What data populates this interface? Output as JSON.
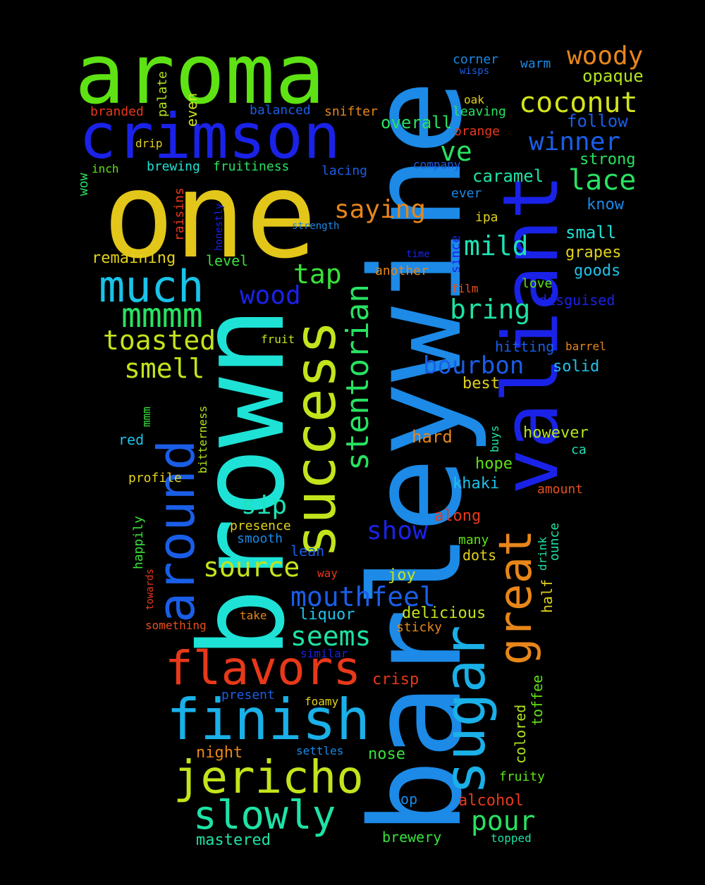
{
  "words": [
    {
      "text": "barleywine",
      "color": "#1c8ae6"
    },
    {
      "text": "brown",
      "color": "#1ee2d6"
    },
    {
      "text": "one",
      "color": "#e2c61a"
    },
    {
      "text": "aroma",
      "color": "#5ee214"
    },
    {
      "text": "valiant",
      "color": "#1a22e8"
    },
    {
      "text": "crimson",
      "color": "#1a22e8"
    },
    {
      "text": "success",
      "color": "#c2e41c"
    },
    {
      "text": "sugar",
      "color": "#1ab0e8"
    },
    {
      "text": "great",
      "color": "#e8861a"
    },
    {
      "text": "around",
      "color": "#1a5ee8"
    },
    {
      "text": "finish",
      "color": "#1ab0e8"
    },
    {
      "text": "flavors",
      "color": "#e8381a"
    },
    {
      "text": "jericho",
      "color": "#c2e41c"
    },
    {
      "text": "slowly",
      "color": "#1ee2a6"
    },
    {
      "text": "much",
      "color": "#1ac2e8"
    },
    {
      "text": "stentorian",
      "color": "#28e262"
    },
    {
      "text": "mmmm",
      "color": "#28e262"
    },
    {
      "text": "toasted",
      "color": "#c2e41c"
    },
    {
      "text": "coconut",
      "color": "#d2e41c"
    },
    {
      "text": "woody",
      "color": "#e8861a"
    },
    {
      "text": "saying",
      "color": "#e8861a"
    },
    {
      "text": "winner",
      "color": "#1a5ee8"
    },
    {
      "text": "lace",
      "color": "#28e262"
    },
    {
      "text": "mild",
      "color": "#1ee2b6"
    },
    {
      "text": "bring",
      "color": "#1ee2a6"
    },
    {
      "text": "tap",
      "color": "#38e23a"
    },
    {
      "text": "wood",
      "color": "#1a22e8"
    },
    {
      "text": "smell",
      "color": "#c2e41c"
    },
    {
      "text": "bourbon",
      "color": "#1a5ee8"
    },
    {
      "text": "sip",
      "color": "#1ee2b6"
    },
    {
      "text": "source",
      "color": "#c2e41c"
    },
    {
      "text": "show",
      "color": "#1a22e8"
    },
    {
      "text": "mouthfeel",
      "color": "#1a5ee8"
    },
    {
      "text": "seems",
      "color": "#1ee2a6"
    },
    {
      "text": "pour",
      "color": "#28e262"
    },
    {
      "text": "ve",
      "color": "#28e262"
    },
    {
      "text": "caramel",
      "color": "#1ee2a6"
    },
    {
      "text": "overall",
      "color": "#28e262"
    },
    {
      "text": "opaque",
      "color": "#b2e41c"
    },
    {
      "text": "follow",
      "color": "#1a5ee8"
    },
    {
      "text": "strong",
      "color": "#28e262"
    },
    {
      "text": "know",
      "color": "#1a8ae8"
    },
    {
      "text": "small",
      "color": "#1ee2d6"
    },
    {
      "text": "grapes",
      "color": "#e2d21a"
    },
    {
      "text": "goods",
      "color": "#1ec2e8"
    },
    {
      "text": "love",
      "color": "#5ee214"
    },
    {
      "text": "disguised",
      "color": "#1a22e8"
    },
    {
      "text": "hitting",
      "color": "#1a5ee8"
    },
    {
      "text": "barrel",
      "color": "#e8861a"
    },
    {
      "text": "solid",
      "color": "#1ec2e8"
    },
    {
      "text": "best",
      "color": "#e2d21a"
    },
    {
      "text": "however",
      "color": "#b2e41c"
    },
    {
      "text": "ca",
      "color": "#1ee2b6"
    },
    {
      "text": "hope",
      "color": "#5ee214"
    },
    {
      "text": "khaki",
      "color": "#1ec2e8"
    },
    {
      "text": "amount",
      "color": "#e8501a"
    },
    {
      "text": "hard",
      "color": "#e8861a"
    },
    {
      "text": "buys",
      "color": "#1ee2a6"
    },
    {
      "text": "along",
      "color": "#e8381a"
    },
    {
      "text": "many",
      "color": "#5ee214"
    },
    {
      "text": "dots",
      "color": "#e2d21a"
    },
    {
      "text": "drink",
      "color": "#1ee2a6"
    },
    {
      "text": "ounce",
      "color": "#1ee2a6"
    },
    {
      "text": "half",
      "color": "#e2d21a"
    },
    {
      "text": "joy",
      "color": "#c2e41c"
    },
    {
      "text": "delicious",
      "color": "#c2e41c"
    },
    {
      "text": "sticky",
      "color": "#e8861a"
    },
    {
      "text": "crisp",
      "color": "#e8381a"
    },
    {
      "text": "nose",
      "color": "#38e23a"
    },
    {
      "text": "alcohol",
      "color": "#e8381a"
    },
    {
      "text": "fruity",
      "color": "#5ee214"
    },
    {
      "text": "toffee",
      "color": "#5ee214"
    },
    {
      "text": "colored",
      "color": "#b2e41c"
    },
    {
      "text": "top",
      "color": "#1a8ae8"
    },
    {
      "text": "brewery",
      "color": "#38e23a"
    },
    {
      "text": "topped",
      "color": "#1ee2a6"
    },
    {
      "text": "foamy",
      "color": "#e2d21a"
    },
    {
      "text": "settles",
      "color": "#1a8ae8"
    },
    {
      "text": "similar",
      "color": "#1a22e8"
    },
    {
      "text": "present",
      "color": "#1a5ee8"
    },
    {
      "text": "take",
      "color": "#e8861a"
    },
    {
      "text": "liquor",
      "color": "#1ec2e8"
    },
    {
      "text": "night",
      "color": "#e8861a"
    },
    {
      "text": "mastered",
      "color": "#1ee2a6"
    },
    {
      "text": "corner",
      "color": "#1a8ae8"
    },
    {
      "text": "wisps",
      "color": "#1a5ee8"
    },
    {
      "text": "warm",
      "color": "#1a8ae8"
    },
    {
      "text": "oak",
      "color": "#e2d21a"
    },
    {
      "text": "leaving",
      "color": "#28e262"
    },
    {
      "text": "orange",
      "color": "#e8381a"
    },
    {
      "text": "snifter",
      "color": "#e8861a"
    },
    {
      "text": "balanced",
      "color": "#1a5ee8"
    },
    {
      "text": "branded",
      "color": "#e8381a"
    },
    {
      "text": "palate",
      "color": "#b2e41c"
    },
    {
      "text": "even",
      "color": "#d2e41c"
    },
    {
      "text": "drip",
      "color": "#e2d21a"
    },
    {
      "text": "inch",
      "color": "#5ee214"
    },
    {
      "text": "wow",
      "color": "#28e262"
    },
    {
      "text": "brewing",
      "color": "#1ee2d6"
    },
    {
      "text": "fruitiness",
      "color": "#28e262"
    },
    {
      "text": "lacing",
      "color": "#1a5ee8"
    },
    {
      "text": "company",
      "color": "#1a5ee8"
    },
    {
      "text": "ever",
      "color": "#1a8ae8"
    },
    {
      "text": "ipa",
      "color": "#e2d21a"
    },
    {
      "text": "raisins",
      "color": "#e8381a"
    },
    {
      "text": "honestly",
      "color": "#1a22e8"
    },
    {
      "text": "strength",
      "color": "#1a8ae8"
    },
    {
      "text": "since",
      "color": "#1a22e8"
    },
    {
      "text": "time",
      "color": "#1a22e8"
    },
    {
      "text": "another",
      "color": "#e8861a"
    },
    {
      "text": "remaining",
      "color": "#e2d21a"
    },
    {
      "text": "level",
      "color": "#38e23a"
    },
    {
      "text": "film",
      "color": "#e8501a"
    },
    {
      "text": "fruit",
      "color": "#c2e41c"
    },
    {
      "text": "bitterness",
      "color": "#b2e41c"
    },
    {
      "text": "mmm",
      "color": "#38e23a"
    },
    {
      "text": "red",
      "color": "#1ec2e8"
    },
    {
      "text": "profile",
      "color": "#e2d21a"
    },
    {
      "text": "happily",
      "color": "#38e23a"
    },
    {
      "text": "presence",
      "color": "#e2d21a"
    },
    {
      "text": "smooth",
      "color": "#1a8ae8"
    },
    {
      "text": "lean",
      "color": "#1a5ee8"
    },
    {
      "text": "towards",
      "color": "#e8381a"
    },
    {
      "text": "way",
      "color": "#e8381a"
    },
    {
      "text": "something",
      "color": "#e8501a"
    }
  ]
}
